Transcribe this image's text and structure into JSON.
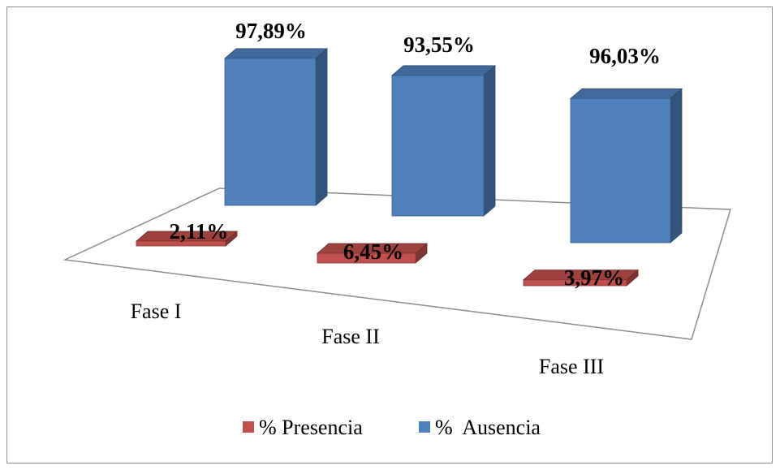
{
  "chart_data": {
    "type": "bar",
    "categories": [
      "Fase I",
      "Fase II",
      "Fase III"
    ],
    "series": [
      {
        "name": "% Presencia",
        "values": [
          2.11,
          6.45,
          3.97
        ],
        "labels": [
          "2,11%",
          "6,45%",
          "3,97%"
        ],
        "color": "#c0504d"
      },
      {
        "name": "%  Ausencia",
        "values": [
          97.89,
          93.55,
          96.03
        ],
        "labels": [
          "97,89%",
          "93,55%",
          "96,03%"
        ],
        "color": "#4f81bd"
      }
    ],
    "ylim": [
      0,
      100
    ],
    "grid": false,
    "legend_position": "bottom",
    "three_d": true
  }
}
